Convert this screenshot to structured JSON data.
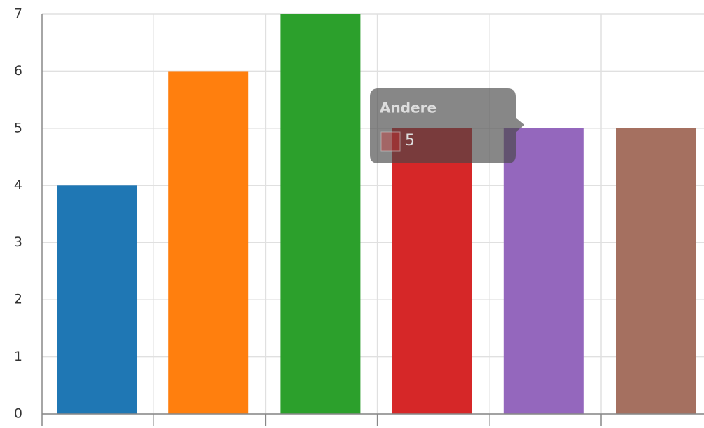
{
  "chart_data": {
    "type": "bar",
    "categories": [
      null,
      null,
      null,
      "Andere",
      null,
      null
    ],
    "values": [
      4,
      6,
      7,
      5,
      5,
      5
    ],
    "colors": [
      "#1f77b4",
      "#ff7f0e",
      "#2ca02c",
      "#d62728",
      "#9467bd",
      "#a57060"
    ],
    "ylim": [
      0,
      7
    ],
    "yticks": [
      0,
      1,
      2,
      3,
      4,
      5,
      6,
      7
    ],
    "grid": true,
    "tooltip_index": 3
  }
}
